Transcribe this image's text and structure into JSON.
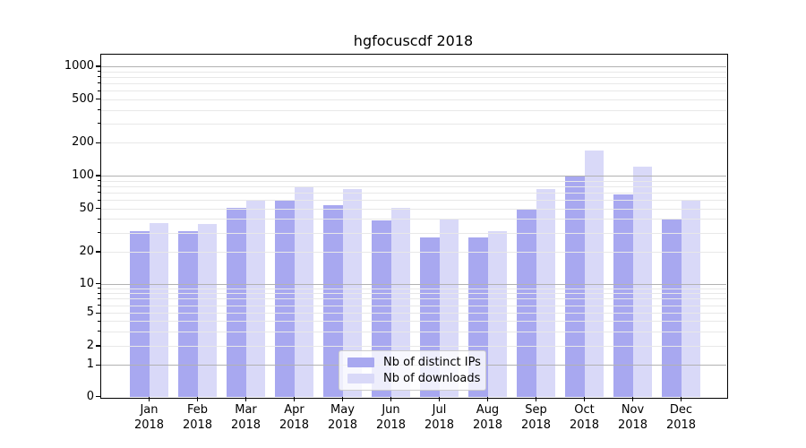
{
  "figure": {
    "title": "hgfocuscdf 2018"
  },
  "colors": {
    "distinct_ips": "#a8a8f0",
    "downloads": "#d9d9f8",
    "grid_major": "#b2b2b2",
    "grid_minor": "#e8e8e8",
    "spine": "#000000",
    "text": "#000000"
  },
  "legend": {
    "items": [
      {
        "label": "Nb of distinct IPs",
        "series": "distinct_ips"
      },
      {
        "label": "Nb of downloads",
        "series": "downloads"
      }
    ]
  },
  "y_axis": {
    "tick_labels": [
      "0",
      "1",
      "2",
      "5",
      "10",
      "20",
      "50",
      "100",
      "200",
      "500",
      "1000"
    ]
  },
  "x_axis": {
    "year": "2018",
    "months": [
      "Jan",
      "Feb",
      "Mar",
      "Apr",
      "May",
      "Jun",
      "Jul",
      "Aug",
      "Sep",
      "Oct",
      "Nov",
      "Dec"
    ]
  },
  "chart_data": {
    "type": "bar",
    "title": "hgfocuscdf 2018",
    "categories": [
      "Jan 2018",
      "Feb 2018",
      "Mar 2018",
      "Apr 2018",
      "May 2018",
      "Jun 2018",
      "Jul 2018",
      "Aug 2018",
      "Sep 2018",
      "Oct 2018",
      "Nov 2018",
      "Dec 2018"
    ],
    "series": [
      {
        "name": "Nb of distinct IPs",
        "color": "#a8a8f0",
        "values": [
          31,
          31,
          51,
          60,
          54,
          39,
          27,
          27,
          49,
          100,
          67,
          40
        ]
      },
      {
        "name": "Nb of downloads",
        "color": "#d9d9f8",
        "values": [
          37,
          36,
          60,
          80,
          76,
          51,
          40,
          31,
          75,
          170,
          120,
          60
        ]
      }
    ],
    "xlabel": "",
    "ylabel": "",
    "yscale": "log-like (linear segment 0-1, compressed log below 10)",
    "yticks": [
      0,
      1,
      2,
      5,
      10,
      20,
      50,
      100,
      200,
      500,
      1000
    ],
    "ylim": [
      0,
      1400
    ],
    "grid": "major decade lines darker, minor lines light, drawn above bars",
    "legend_position": "lower center inside plot"
  }
}
